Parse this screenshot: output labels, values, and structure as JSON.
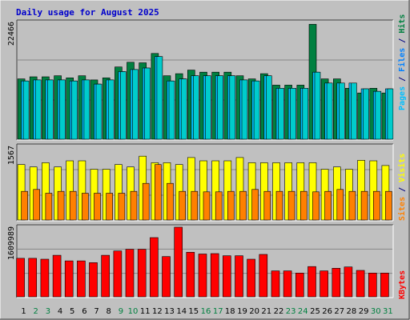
{
  "title": "Daily usage for August 2025",
  "colors": {
    "background": "#c0c0c0",
    "grid": "#888888",
    "hits": "#008040",
    "files": "#00bfff",
    "pages": "#00cccc",
    "visits": "#ffff00",
    "sites": "#ff8000",
    "kbytes": "#ff0000",
    "weekday_label": "#000000",
    "weekend_label": "#008040",
    "title": "#0000cc"
  },
  "right_labels": {
    "top": [
      {
        "text": "Pages",
        "color": "#00bfff"
      },
      {
        "text": " / ",
        "color": "#000080"
      },
      {
        "text": "Files",
        "color": "#0080ff"
      },
      {
        "text": " / ",
        "color": "#000080"
      },
      {
        "text": "Hits",
        "color": "#008040"
      }
    ],
    "middle": [
      {
        "text": "Sites",
        "color": "#ff8000"
      },
      {
        "text": " / ",
        "color": "#000080"
      },
      {
        "text": "Visits",
        "color": "#ffff00"
      }
    ],
    "bottom": [
      {
        "text": "KBytes",
        "color": "#ff0000"
      }
    ]
  },
  "chart_data": {
    "type": "bar",
    "title": "Daily usage for August 2025",
    "categories": [
      "1",
      "2",
      "3",
      "4",
      "5",
      "6",
      "7",
      "8",
      "9",
      "10",
      "11",
      "12",
      "13",
      "14",
      "15",
      "16",
      "17",
      "18",
      "19",
      "20",
      "21",
      "22",
      "23",
      "24",
      "25",
      "26",
      "27",
      "28",
      "29",
      "30",
      "31"
    ],
    "weekend_days": [
      "2",
      "3",
      "9",
      "10",
      "16",
      "17",
      "23",
      "24",
      "30",
      "31"
    ],
    "panels": [
      {
        "name": "hits_files_pages",
        "max_label": "22466",
        "ylim": [
          0,
          22466
        ],
        "series": [
          {
            "name": "Hits",
            "values": [
              11600,
              12000,
              12000,
              12200,
              11800,
              12200,
              11400,
              11800,
              13900,
              14800,
              14700,
              16500,
              12200,
              12600,
              13300,
              12900,
              12900,
              12900,
              12200,
              11600,
              12600,
              10400,
              10400,
              10400,
              22100,
              11600,
              11600,
              9800,
              8900,
              9800,
              8900
            ]
          },
          {
            "name": "Files",
            "values": [
              11200,
              11400,
              11400,
              11400,
              11200,
              11400,
              10600,
              11400,
              13000,
              13400,
              13700,
              15900,
              11200,
              11600,
              12200,
              12200,
              12200,
              12200,
              11400,
              11200,
              12200,
              9800,
              9800,
              9800,
              12900,
              10800,
              10800,
              10800,
              9700,
              9200,
              9700
            ]
          },
          {
            "name": "Pages",
            "values": [
              11200,
              11400,
              11400,
              11400,
              11200,
              11400,
              10600,
              11400,
              13000,
              13400,
              13700,
              15900,
              11200,
              11600,
              12200,
              12200,
              12200,
              12200,
              11400,
              11200,
              12200,
              9800,
              9800,
              9800,
              12900,
              10800,
              10800,
              10800,
              9700,
              9200,
              9700
            ]
          }
        ]
      },
      {
        "name": "visits_sites",
        "max_label": "1567",
        "ylim": [
          0,
          1567
        ],
        "series": [
          {
            "name": "Visits",
            "values": [
              1180,
              1130,
              1220,
              1130,
              1260,
              1260,
              1080,
              1080,
              1180,
              1130,
              1360,
              1220,
              1220,
              1180,
              1330,
              1260,
              1260,
              1260,
              1330,
              1220,
              1220,
              1220,
              1220,
              1220,
              1220,
              1080,
              1130,
              1080,
              1270,
              1260,
              1160
            ]
          },
          {
            "name": "Sites",
            "values": [
              610,
              650,
              570,
              610,
              610,
              570,
              570,
              570,
              570,
              610,
              780,
              1180,
              780,
              610,
              610,
              600,
              600,
              610,
              610,
              650,
              610,
              610,
              610,
              610,
              600,
              610,
              650,
              610,
              610,
              610,
              610
            ]
          }
        ]
      },
      {
        "name": "kbytes",
        "max_label": "1609989",
        "ylim": [
          0,
          1609989
        ],
        "series": [
          {
            "name": "KBytes",
            "values": [
              890000,
              890000,
              870000,
              960000,
              830000,
              830000,
              790000,
              960000,
              1060000,
              1100000,
              1100000,
              1370000,
              930000,
              1610000,
              1030000,
              990000,
              1000000,
              950000,
              950000,
              870000,
              980000,
              600000,
              600000,
              550000,
              700000,
              600000,
              660000,
              690000,
              610000,
              550000,
              550000
            ]
          }
        ]
      }
    ],
    "grid": true,
    "legend": "right"
  }
}
